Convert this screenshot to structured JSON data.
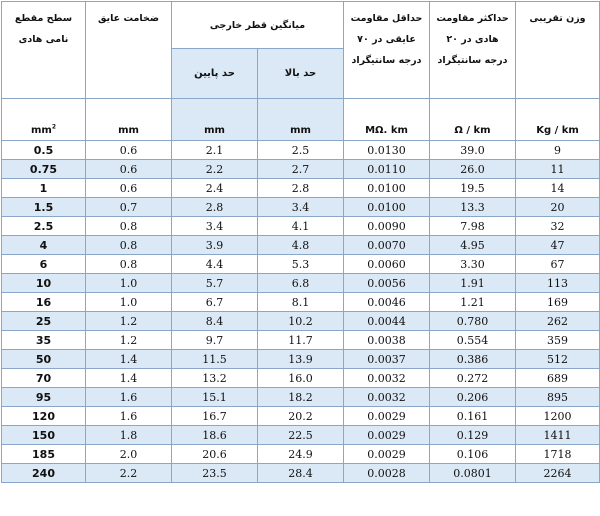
{
  "headers": {
    "area": "سطح مقطع\nنامی هادی",
    "insulation": "ضخامت عایق",
    "diameter": "میانگین قطر خارجی",
    "diameter_low": "حد پایین",
    "diameter_high": "حد بالا",
    "insulation_resistance": "حداقل مقاومت\nعایقی در ۷۰\nدرجه سانتیگراد",
    "conductor_resistance": "حداکثر مقاومت\nهادی در ۲۰\nدرجه سانتیگراد",
    "weight": "وزن تقریبی"
  },
  "units": {
    "area_base": "mm",
    "area_sup": "2",
    "insulation": "mm",
    "diameter_low": "mm",
    "diameter_high": "mm",
    "insulation_resistance": "MΩ. km",
    "conductor_resistance": "Ω / km",
    "weight": "Kg / km"
  },
  "rows": [
    [
      "0.5",
      "0.6",
      "2.1",
      "2.5",
      "0.0130",
      "39.0",
      "9"
    ],
    [
      "0.75",
      "0.6",
      "2.2",
      "2.7",
      "0.0110",
      "26.0",
      "11"
    ],
    [
      "1",
      "0.6",
      "2.4",
      "2.8",
      "0.0100",
      "19.5",
      "14"
    ],
    [
      "1.5",
      "0.7",
      "2.8",
      "3.4",
      "0.0100",
      "13.3",
      "20"
    ],
    [
      "2.5",
      "0.8",
      "3.4",
      "4.1",
      "0.0090",
      "7.98",
      "32"
    ],
    [
      "4",
      "0.8",
      "3.9",
      "4.8",
      "0.0070",
      "4.95",
      "47"
    ],
    [
      "6",
      "0.8",
      "4.4",
      "5.3",
      "0.0060",
      "3.30",
      "67"
    ],
    [
      "10",
      "1.0",
      "5.7",
      "6.8",
      "0.0056",
      "1.91",
      "113"
    ],
    [
      "16",
      "1.0",
      "6.7",
      "8.1",
      "0.0046",
      "1.21",
      "169"
    ],
    [
      "25",
      "1.2",
      "8.4",
      "10.2",
      "0.0044",
      "0.780",
      "262"
    ],
    [
      "35",
      "1.2",
      "9.7",
      "11.7",
      "0.0038",
      "0.554",
      "359"
    ],
    [
      "50",
      "1.4",
      "11.5",
      "13.9",
      "0.0037",
      "0.386",
      "512"
    ],
    [
      "70",
      "1.4",
      "13.2",
      "16.0",
      "0.0032",
      "0.272",
      "689"
    ],
    [
      "95",
      "1.6",
      "15.1",
      "18.2",
      "0.0032",
      "0.206",
      "895"
    ],
    [
      "120",
      "1.6",
      "16.7",
      "20.2",
      "0.0029",
      "0.161",
      "1200"
    ],
    [
      "150",
      "1.8",
      "18.6",
      "22.5",
      "0.0029",
      "0.129",
      "1411"
    ],
    [
      "185",
      "2.0",
      "20.6",
      "24.9",
      "0.0029",
      "0.106",
      "1718"
    ],
    [
      "240",
      "2.2",
      "23.5",
      "28.4",
      "0.0028",
      "0.0801",
      "2264"
    ]
  ]
}
